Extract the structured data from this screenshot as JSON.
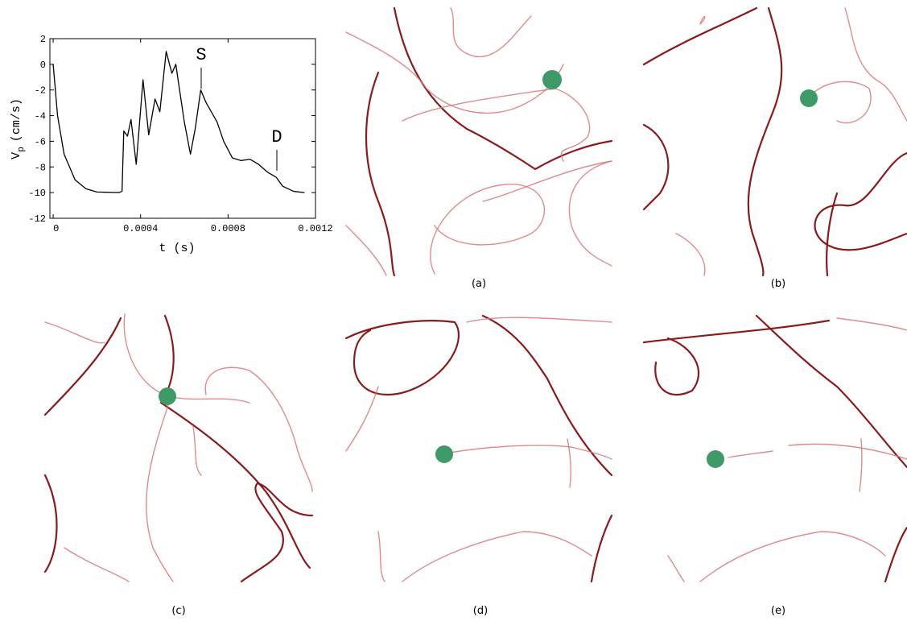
{
  "chart_data": {
    "type": "line",
    "xlabel": "t (s)",
    "ylabel": "V",
    "ylabel_sub": "p",
    "ylabel_unit": "(cm/s)",
    "annotations": [
      "S",
      "D"
    ],
    "x": [
      0,
      2e-05,
      5e-05,
      0.0001,
      0.00015,
      0.0002,
      0.0003,
      0.000315,
      0.000323,
      0.00034,
      0.000356,
      0.00038,
      0.000411,
      0.000437,
      0.000466,
      0.000488,
      0.000517,
      0.000543,
      0.000561,
      0.0006,
      0.000628,
      0.00065,
      0.000675,
      0.0007,
      0.00072,
      0.00075,
      0.00078,
      0.00082,
      0.00086,
      0.0009,
      0.00094,
      0.00098,
      0.00102,
      0.00105,
      0.0011,
      0.00115
    ],
    "series": [
      {
        "color": "#000000",
        "values": [
          0,
          -4,
          -7,
          -9,
          -9.7,
          -9.95,
          -10,
          -9.9,
          -5.2,
          -5.6,
          -4.3,
          -7.8,
          -1.2,
          -5.5,
          -2.7,
          -3.7,
          1,
          -0.7,
          0,
          -4.5,
          -7,
          -5,
          -2,
          -3,
          -3.6,
          -4.5,
          -6,
          -7.3,
          -7.5,
          -7.4,
          -7.8,
          -8.4,
          -8.8,
          -9.5,
          -9.9,
          -10
        ]
      }
    ],
    "xlim": [
      -1.5e-05,
      0.0012
    ],
    "ylim": [
      -12,
      2
    ],
    "xticks": [
      0,
      0.0004,
      0.0008,
      0.0012
    ],
    "yticks": [
      2,
      0,
      -2,
      -4,
      -6,
      -8,
      -10,
      -12
    ]
  },
  "panels": [
    {
      "caption": "(a)"
    },
    {
      "caption": "(b)"
    },
    {
      "caption": "(c)"
    },
    {
      "caption": "(d)"
    },
    {
      "caption": "(e)"
    }
  ]
}
